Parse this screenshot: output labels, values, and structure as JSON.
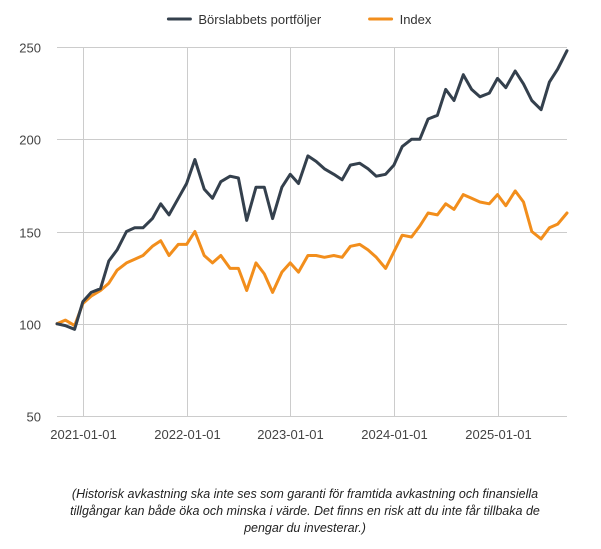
{
  "chart_data": {
    "type": "line",
    "title": "",
    "xlabel": "",
    "ylabel": "",
    "ylim": [
      50,
      250
    ],
    "yticks": [
      50,
      100,
      150,
      200,
      250
    ],
    "xlim": [
      2020.75,
      2025.67
    ],
    "xticks": [
      {
        "label": "2021-01-01",
        "value": 2021.0
      },
      {
        "label": "2022-01-01",
        "value": 2022.0
      },
      {
        "label": "2023-01-01",
        "value": 2023.0
      },
      {
        "label": "2024-01-01",
        "value": 2024.0
      },
      {
        "label": "2025-01-01",
        "value": 2025.0
      }
    ],
    "legend_position": "top-center",
    "grid": true,
    "series": [
      {
        "name": "Börslabbets portföljer",
        "color": "#34404d",
        "points": [
          [
            2020.75,
            100
          ],
          [
            2020.83,
            99
          ],
          [
            2020.92,
            97
          ],
          [
            2021.0,
            112
          ],
          [
            2021.08,
            117
          ],
          [
            2021.17,
            119
          ],
          [
            2021.25,
            134
          ],
          [
            2021.33,
            140
          ],
          [
            2021.42,
            150
          ],
          [
            2021.5,
            152
          ],
          [
            2021.58,
            152
          ],
          [
            2021.67,
            157
          ],
          [
            2021.75,
            165
          ],
          [
            2021.83,
            159
          ],
          [
            2021.92,
            168
          ],
          [
            2022.0,
            176
          ],
          [
            2022.08,
            189
          ],
          [
            2022.17,
            173
          ],
          [
            2022.25,
            168
          ],
          [
            2022.33,
            177
          ],
          [
            2022.42,
            180
          ],
          [
            2022.5,
            179
          ],
          [
            2022.58,
            156
          ],
          [
            2022.67,
            174
          ],
          [
            2022.75,
            174
          ],
          [
            2022.83,
            157
          ],
          [
            2022.92,
            174
          ],
          [
            2023.0,
            181
          ],
          [
            2023.08,
            176
          ],
          [
            2023.17,
            191
          ],
          [
            2023.25,
            188
          ],
          [
            2023.33,
            184
          ],
          [
            2023.42,
            181
          ],
          [
            2023.5,
            178
          ],
          [
            2023.58,
            186
          ],
          [
            2023.67,
            187
          ],
          [
            2023.75,
            184
          ],
          [
            2023.83,
            180
          ],
          [
            2023.92,
            181
          ],
          [
            2024.0,
            186
          ],
          [
            2024.08,
            196
          ],
          [
            2024.17,
            200
          ],
          [
            2024.25,
            200
          ],
          [
            2024.33,
            211
          ],
          [
            2024.42,
            213
          ],
          [
            2024.5,
            227
          ],
          [
            2024.58,
            221
          ],
          [
            2024.67,
            235
          ],
          [
            2024.75,
            227
          ],
          [
            2024.83,
            223
          ],
          [
            2024.92,
            225
          ],
          [
            2025.0,
            233
          ],
          [
            2025.08,
            228
          ],
          [
            2025.17,
            237
          ],
          [
            2025.25,
            230
          ],
          [
            2025.33,
            221
          ],
          [
            2025.42,
            216
          ],
          [
            2025.5,
            231
          ],
          [
            2025.58,
            238
          ],
          [
            2025.67,
            248
          ]
        ]
      },
      {
        "name": "Index",
        "color": "#f28e1c",
        "points": [
          [
            2020.75,
            100
          ],
          [
            2020.83,
            102
          ],
          [
            2020.92,
            99
          ],
          [
            2021.0,
            111
          ],
          [
            2021.08,
            115
          ],
          [
            2021.17,
            118
          ],
          [
            2021.25,
            122
          ],
          [
            2021.33,
            129
          ],
          [
            2021.42,
            133
          ],
          [
            2021.5,
            135
          ],
          [
            2021.58,
            137
          ],
          [
            2021.67,
            142
          ],
          [
            2021.75,
            145
          ],
          [
            2021.83,
            137
          ],
          [
            2021.92,
            143
          ],
          [
            2022.0,
            143
          ],
          [
            2022.08,
            150
          ],
          [
            2022.17,
            137
          ],
          [
            2022.25,
            133
          ],
          [
            2022.33,
            137
          ],
          [
            2022.42,
            130
          ],
          [
            2022.5,
            130
          ],
          [
            2022.58,
            118
          ],
          [
            2022.67,
            133
          ],
          [
            2022.75,
            127
          ],
          [
            2022.83,
            117
          ],
          [
            2022.92,
            128
          ],
          [
            2023.0,
            133
          ],
          [
            2023.08,
            128
          ],
          [
            2023.17,
            137
          ],
          [
            2023.25,
            137
          ],
          [
            2023.33,
            136
          ],
          [
            2023.42,
            137
          ],
          [
            2023.5,
            136
          ],
          [
            2023.58,
            142
          ],
          [
            2023.67,
            143
          ],
          [
            2023.75,
            140
          ],
          [
            2023.83,
            136
          ],
          [
            2023.92,
            130
          ],
          [
            2024.0,
            139
          ],
          [
            2024.08,
            148
          ],
          [
            2024.17,
            147
          ],
          [
            2024.25,
            153
          ],
          [
            2024.33,
            160
          ],
          [
            2024.42,
            159
          ],
          [
            2024.5,
            165
          ],
          [
            2024.58,
            162
          ],
          [
            2024.67,
            170
          ],
          [
            2024.75,
            168
          ],
          [
            2024.83,
            166
          ],
          [
            2024.92,
            165
          ],
          [
            2025.0,
            170
          ],
          [
            2025.08,
            164
          ],
          [
            2025.17,
            172
          ],
          [
            2025.25,
            166
          ],
          [
            2025.33,
            150
          ],
          [
            2025.42,
            146
          ],
          [
            2025.5,
            152
          ],
          [
            2025.58,
            154
          ],
          [
            2025.67,
            160
          ]
        ]
      }
    ]
  },
  "disclaimer": "(Historisk avkastning ska inte ses som garanti för framtida avkastning och finansiella tillgångar kan både öka och minska i värde. Det finns en risk att du inte får tillbaka de pengar du investerar.)"
}
